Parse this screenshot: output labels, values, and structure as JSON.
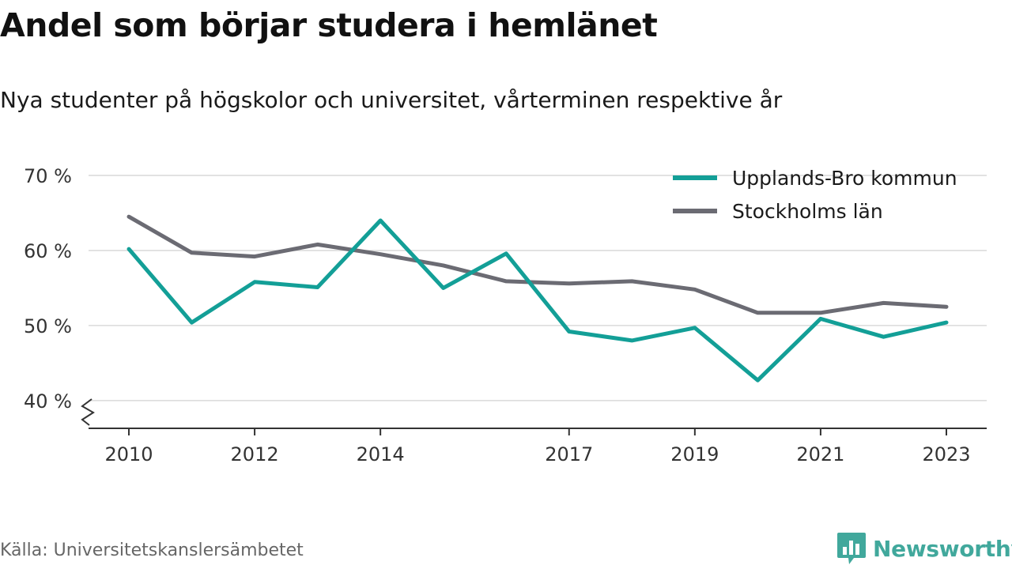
{
  "header": {
    "title": "Andel som börjar studera i hemlänet",
    "subtitle": "Nya studenter på högskolor och universitet, vårterminen respektive år"
  },
  "footer": {
    "source": "Källa: Universitetskanslersämbetet",
    "brand": "Newsworthy",
    "brand_icon": "bar-chart-bubble-icon",
    "brand_color": "#41a89c"
  },
  "chart_data": {
    "type": "line",
    "x": [
      2010,
      2011,
      2012,
      2013,
      2014,
      2015,
      2016,
      2017,
      2018,
      2019,
      2020,
      2021,
      2022,
      2023
    ],
    "x_ticks": [
      "2010",
      "2012",
      "2014",
      "2017",
      "2019",
      "2021",
      "2023"
    ],
    "y_ticks": [
      "40 %",
      "50 %",
      "60 %",
      "70 %"
    ],
    "y_tick_values": [
      40,
      50,
      60,
      70
    ],
    "ylim": [
      36.3,
      70
    ],
    "y_axis_break": true,
    "grid": true,
    "legend_position": "top-right",
    "series": [
      {
        "name": "Upplands-Bro kommun",
        "color": "#139f97",
        "values": [
          60.2,
          50.4,
          55.8,
          55.1,
          64.0,
          55.0,
          59.6,
          49.2,
          48.0,
          49.7,
          42.7,
          50.9,
          48.5,
          50.4
        ]
      },
      {
        "name": "Stockholms län",
        "color": "#6b6b73",
        "values": [
          64.5,
          59.7,
          59.2,
          60.8,
          59.5,
          58.0,
          55.9,
          55.6,
          55.9,
          54.8,
          51.7,
          51.7,
          53.0,
          52.5
        ]
      }
    ]
  }
}
